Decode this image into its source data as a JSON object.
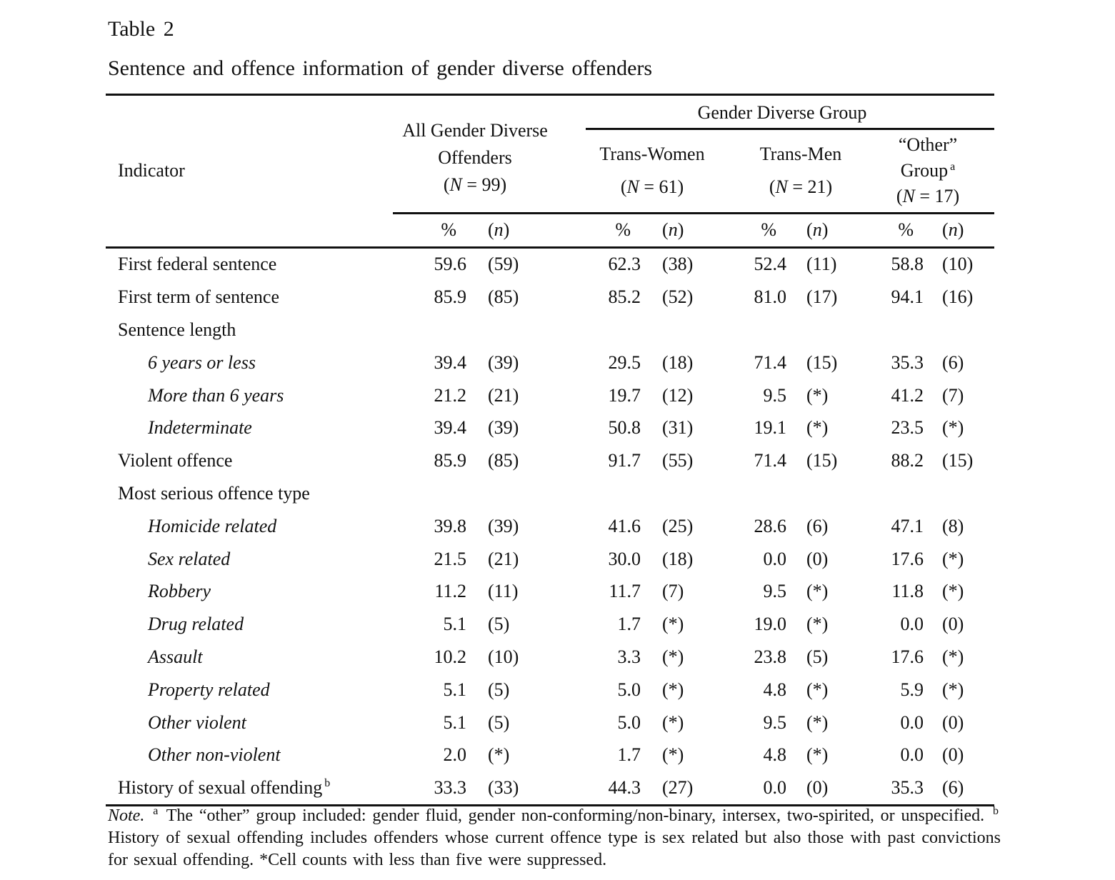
{
  "page": {
    "table_number": "Table 2",
    "caption": "Sentence and offence information of gender diverse offenders"
  },
  "table": {
    "indicator_header": "Indicator",
    "group_header": "Gender Diverse Group",
    "groups": {
      "all": {
        "line1": "All Gender Diverse",
        "line2": "Offenders",
        "n_open": "(",
        "n_var": "N",
        "n_rest": " = 99)"
      },
      "trans_women": {
        "label": "Trans-Women",
        "n_open": "(",
        "n_var": "N",
        "n_rest": " = 61)"
      },
      "trans_men": {
        "label": "Trans-Men",
        "n_open": "(",
        "n_var": "N",
        "n_rest": " = 21)"
      },
      "other": {
        "line1": "“Other”",
        "line2": "Group",
        "sup": "a",
        "n_open": "(",
        "n_var": "N",
        "n_rest": " = 17)"
      }
    },
    "subheader": {
      "pct": "%",
      "n_open": "(",
      "n_var": "n",
      "n_close": ")"
    },
    "rows": [
      {
        "label": "First federal sentence",
        "indent": false,
        "italic": false,
        "sup": "",
        "values": [
          "59.6",
          "(59)",
          "62.3",
          "(38)",
          "52.4",
          "(11)",
          "58.8",
          "(10)"
        ]
      },
      {
        "label": "First term of sentence",
        "indent": false,
        "italic": false,
        "sup": "",
        "values": [
          "85.9",
          "(85)",
          "85.2",
          "(52)",
          "81.0",
          "(17)",
          "94.1",
          "(16)"
        ]
      },
      {
        "label": "Sentence length",
        "indent": false,
        "italic": false,
        "sup": "",
        "values": [
          "",
          "",
          "",
          "",
          "",
          "",
          "",
          ""
        ]
      },
      {
        "label": "6 years or less",
        "indent": true,
        "italic": true,
        "sup": "",
        "values": [
          "39.4",
          "(39)",
          "29.5",
          "(18)",
          "71.4",
          "(15)",
          "35.3",
          "(6)"
        ]
      },
      {
        "label": "More than 6 years",
        "indent": true,
        "italic": true,
        "sup": "",
        "values": [
          "21.2",
          "(21)",
          "19.7",
          "(12)",
          "9.5",
          "(*)",
          "41.2",
          "(7)"
        ]
      },
      {
        "label": "Indeterminate",
        "indent": true,
        "italic": true,
        "sup": "",
        "values": [
          "39.4",
          "(39)",
          "50.8",
          "(31)",
          "19.1",
          "(*)",
          "23.5",
          "(*)"
        ]
      },
      {
        "label": "Violent offence",
        "indent": false,
        "italic": false,
        "sup": "",
        "values": [
          "85.9",
          "(85)",
          "91.7",
          "(55)",
          "71.4",
          "(15)",
          "88.2",
          "(15)"
        ]
      },
      {
        "label": "Most serious offence type",
        "indent": false,
        "italic": false,
        "sup": "",
        "values": [
          "",
          "",
          "",
          "",
          "",
          "",
          "",
          ""
        ]
      },
      {
        "label": "Homicide related",
        "indent": true,
        "italic": true,
        "sup": "",
        "values": [
          "39.8",
          "(39)",
          "41.6",
          "(25)",
          "28.6",
          "(6)",
          "47.1",
          "(8)"
        ]
      },
      {
        "label": "Sex related",
        "indent": true,
        "italic": true,
        "sup": "",
        "values": [
          "21.5",
          "(21)",
          "30.0",
          "(18)",
          "0.0",
          "(0)",
          "17.6",
          "(*)"
        ]
      },
      {
        "label": "Robbery",
        "indent": true,
        "italic": true,
        "sup": "",
        "values": [
          "11.2",
          "(11)",
          "11.7",
          "(7)",
          "9.5",
          "(*)",
          "11.8",
          "(*)"
        ]
      },
      {
        "label": "Drug related",
        "indent": true,
        "italic": true,
        "sup": "",
        "values": [
          "5.1",
          "(5)",
          "1.7",
          "(*)",
          "19.0",
          "(*)",
          "0.0",
          "(0)"
        ]
      },
      {
        "label": "Assault",
        "indent": true,
        "italic": true,
        "sup": "",
        "values": [
          "10.2",
          "(10)",
          "3.3",
          "(*)",
          "23.8",
          "(5)",
          "17.6",
          "(*)"
        ]
      },
      {
        "label": "Property related",
        "indent": true,
        "italic": true,
        "sup": "",
        "values": [
          "5.1",
          "(5)",
          "5.0",
          "(*)",
          "4.8",
          "(*)",
          "5.9",
          "(*)"
        ]
      },
      {
        "label": "Other violent",
        "indent": true,
        "italic": true,
        "sup": "",
        "values": [
          "5.1",
          "(5)",
          "5.0",
          "(*)",
          "9.5",
          "(*)",
          "0.0",
          "(0)"
        ]
      },
      {
        "label": "Other non-violent",
        "indent": true,
        "italic": true,
        "sup": "",
        "values": [
          "2.0",
          "(*)",
          "1.7",
          "(*)",
          "4.8",
          "(*)",
          "0.0",
          "(0)"
        ]
      },
      {
        "label": "History of sexual offending",
        "indent": false,
        "italic": false,
        "sup": "b",
        "values": [
          "33.3",
          "(33)",
          "44.3",
          "(27)",
          "0.0",
          "(0)",
          "35.3",
          "(6)"
        ]
      }
    ]
  },
  "note": {
    "label": "Note.",
    "sup_a": "a",
    "text_a": "The “other” group included: gender fluid, gender non-conforming/non-binary, intersex, two-spirited, or unspecified.",
    "sup_b": "b",
    "text_b": "History of sexual offending includes offenders whose current offence type is sex related but also those with past convictions for sexual offending. *Cell counts with less than five were suppressed."
  }
}
